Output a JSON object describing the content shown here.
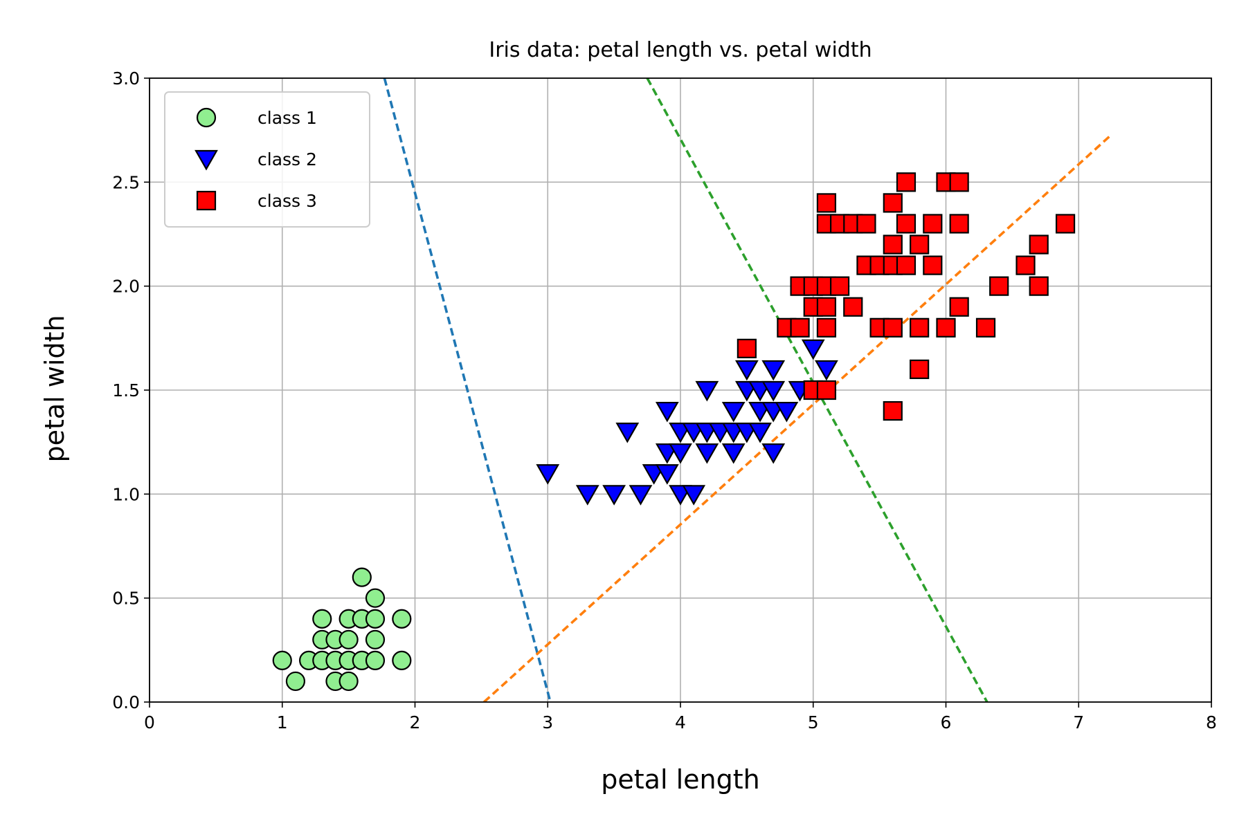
{
  "chart_data": {
    "type": "scatter",
    "title": "Iris data: petal length vs. petal width",
    "xlabel": "petal length",
    "ylabel": "petal width",
    "xlim": [
      0,
      8
    ],
    "ylim": [
      0,
      3
    ],
    "xticks": [
      "0",
      "1",
      "2",
      "3",
      "4",
      "5",
      "6",
      "7",
      "8"
    ],
    "yticks": [
      "0.0",
      "0.5",
      "1.0",
      "1.5",
      "2.0",
      "2.5",
      "3.0"
    ],
    "grid": true,
    "legend_position": "top-left",
    "series": [
      {
        "name": "class 1",
        "marker": "circle",
        "color": "#90ee90",
        "points": [
          [
            1.0,
            0.2
          ],
          [
            1.1,
            0.1
          ],
          [
            1.2,
            0.2
          ],
          [
            1.3,
            0.2
          ],
          [
            1.3,
            0.3
          ],
          [
            1.3,
            0.4
          ],
          [
            1.4,
            0.1
          ],
          [
            1.4,
            0.2
          ],
          [
            1.4,
            0.3
          ],
          [
            1.5,
            0.1
          ],
          [
            1.5,
            0.2
          ],
          [
            1.5,
            0.3
          ],
          [
            1.5,
            0.4
          ],
          [
            1.6,
            0.2
          ],
          [
            1.6,
            0.4
          ],
          [
            1.6,
            0.6
          ],
          [
            1.7,
            0.2
          ],
          [
            1.7,
            0.3
          ],
          [
            1.7,
            0.4
          ],
          [
            1.7,
            0.5
          ],
          [
            1.9,
            0.2
          ],
          [
            1.9,
            0.4
          ]
        ]
      },
      {
        "name": "class 2",
        "marker": "triangle-down",
        "color": "#0000ff",
        "points": [
          [
            3.0,
            1.1
          ],
          [
            3.3,
            1.0
          ],
          [
            3.5,
            1.0
          ],
          [
            3.6,
            1.3
          ],
          [
            3.7,
            1.0
          ],
          [
            3.8,
            1.1
          ],
          [
            3.9,
            1.1
          ],
          [
            3.9,
            1.2
          ],
          [
            3.9,
            1.4
          ],
          [
            4.0,
            1.0
          ],
          [
            4.0,
            1.2
          ],
          [
            4.0,
            1.3
          ],
          [
            4.1,
            1.0
          ],
          [
            4.1,
            1.3
          ],
          [
            4.2,
            1.2
          ],
          [
            4.2,
            1.3
          ],
          [
            4.2,
            1.5
          ],
          [
            4.3,
            1.3
          ],
          [
            4.4,
            1.2
          ],
          [
            4.4,
            1.3
          ],
          [
            4.4,
            1.4
          ],
          [
            4.5,
            1.3
          ],
          [
            4.5,
            1.5
          ],
          [
            4.5,
            1.6
          ],
          [
            4.6,
            1.3
          ],
          [
            4.6,
            1.4
          ],
          [
            4.6,
            1.5
          ],
          [
            4.7,
            1.2
          ],
          [
            4.7,
            1.4
          ],
          [
            4.7,
            1.5
          ],
          [
            4.7,
            1.6
          ],
          [
            4.8,
            1.4
          ],
          [
            4.9,
            1.5
          ],
          [
            5.0,
            1.7
          ],
          [
            5.1,
            1.6
          ]
        ]
      },
      {
        "name": "class 3",
        "marker": "square",
        "color": "#ff0000",
        "points": [
          [
            4.5,
            1.7
          ],
          [
            4.8,
            1.8
          ],
          [
            4.9,
            1.8
          ],
          [
            4.9,
            2.0
          ],
          [
            5.0,
            1.5
          ],
          [
            5.0,
            1.9
          ],
          [
            5.0,
            2.0
          ],
          [
            5.1,
            1.5
          ],
          [
            5.1,
            1.8
          ],
          [
            5.1,
            1.9
          ],
          [
            5.1,
            2.0
          ],
          [
            5.1,
            2.3
          ],
          [
            5.1,
            2.4
          ],
          [
            5.2,
            2.0
          ],
          [
            5.2,
            2.3
          ],
          [
            5.3,
            1.9
          ],
          [
            5.3,
            2.3
          ],
          [
            5.4,
            2.1
          ],
          [
            5.4,
            2.3
          ],
          [
            5.5,
            1.8
          ],
          [
            5.5,
            2.1
          ],
          [
            5.6,
            1.4
          ],
          [
            5.6,
            1.8
          ],
          [
            5.6,
            2.1
          ],
          [
            5.6,
            2.2
          ],
          [
            5.6,
            2.4
          ],
          [
            5.7,
            2.1
          ],
          [
            5.7,
            2.3
          ],
          [
            5.7,
            2.5
          ],
          [
            5.8,
            1.6
          ],
          [
            5.8,
            1.8
          ],
          [
            5.8,
            2.2
          ],
          [
            5.9,
            2.1
          ],
          [
            5.9,
            2.3
          ],
          [
            6.0,
            1.8
          ],
          [
            6.0,
            2.5
          ],
          [
            6.1,
            1.9
          ],
          [
            6.1,
            2.3
          ],
          [
            6.1,
            2.5
          ],
          [
            6.3,
            1.8
          ],
          [
            6.4,
            2.0
          ],
          [
            6.6,
            2.1
          ],
          [
            6.7,
            2.0
          ],
          [
            6.7,
            2.2
          ],
          [
            6.9,
            2.3
          ]
        ]
      }
    ],
    "lines": [
      {
        "style": "dashed",
        "color": "#1f77b4",
        "x": [
          1.77,
          3.02
        ],
        "y": [
          3.0,
          0.0
        ]
      },
      {
        "style": "dashed",
        "color": "#ff7f0e",
        "x": [
          2.52,
          7.25
        ],
        "y": [
          0.0,
          2.73
        ]
      },
      {
        "style": "dashed",
        "color": "#2ca02c",
        "x": [
          3.75,
          6.31
        ],
        "y": [
          3.0,
          0.0
        ]
      }
    ]
  }
}
